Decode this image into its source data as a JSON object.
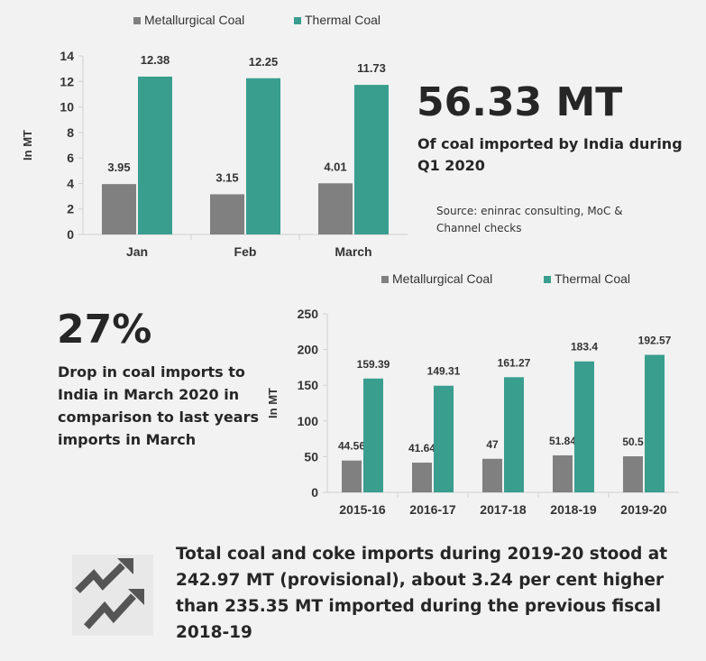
{
  "chart_data": [
    {
      "type": "bar",
      "title": "",
      "categories": [
        "Jan",
        "Feb",
        "March"
      ],
      "series": [
        {
          "name": "Metallurgical Coal",
          "values": [
            3.95,
            3.15,
            4.01
          ]
        },
        {
          "name": "Thermal Coal",
          "values": [
            12.38,
            12.25,
            11.73
          ]
        }
      ],
      "data_labels": [
        [
          "3.95",
          "3.15",
          "4.01"
        ],
        [
          "12.38",
          "12.25",
          "11.73"
        ]
      ],
      "xlabel": "",
      "ylabel": "In MT",
      "ylim": [
        0,
        14
      ],
      "yticks": [
        0,
        2,
        4,
        6,
        8,
        10,
        12,
        14
      ],
      "legend": "top",
      "grid": false
    },
    {
      "type": "bar",
      "title": "",
      "categories": [
        "2015-16",
        "2016-17",
        "2017-18",
        "2018-19",
        "2019-20"
      ],
      "series": [
        {
          "name": "Metallurgical Coal",
          "values": [
            44.56,
            41.64,
            47,
            51.84,
            50.5
          ]
        },
        {
          "name": "Thermal Coal",
          "values": [
            159.39,
            149.31,
            161.27,
            183.4,
            192.57
          ]
        }
      ],
      "data_labels": [
        [
          "44.56",
          "41.64",
          "47",
          "51.84",
          "50.5"
        ],
        [
          "159.39",
          "149.31",
          "161.27",
          "183.4",
          "192.57"
        ]
      ],
      "xlabel": "",
      "ylabel": "In MT",
      "ylim": [
        0,
        250
      ],
      "yticks": [
        0,
        50,
        100,
        150,
        200,
        250
      ],
      "legend": "top",
      "grid": false
    }
  ],
  "colors": {
    "metallurgical": "#808080",
    "thermal": "#3a9e8f",
    "axis": "#d0d0d0",
    "text": "#262626"
  },
  "stat1": {
    "value": "56.33 MT",
    "description": "Of coal imported by India during Q1 2020"
  },
  "source": "Source: eninrac consulting, MoC & Channel checks",
  "stat2": {
    "value": "27%",
    "description": "Drop in coal imports to India in March 2020 in comparison to last years imports in March"
  },
  "footer": {
    "icon": "trend-up-arrows-icon",
    "text": "Total coal and coke imports during 2019-20 stood at 242.97 MT (provisional), about 3.24 per cent higher than 235.35 MT imported during the previous fiscal 2018-19"
  }
}
